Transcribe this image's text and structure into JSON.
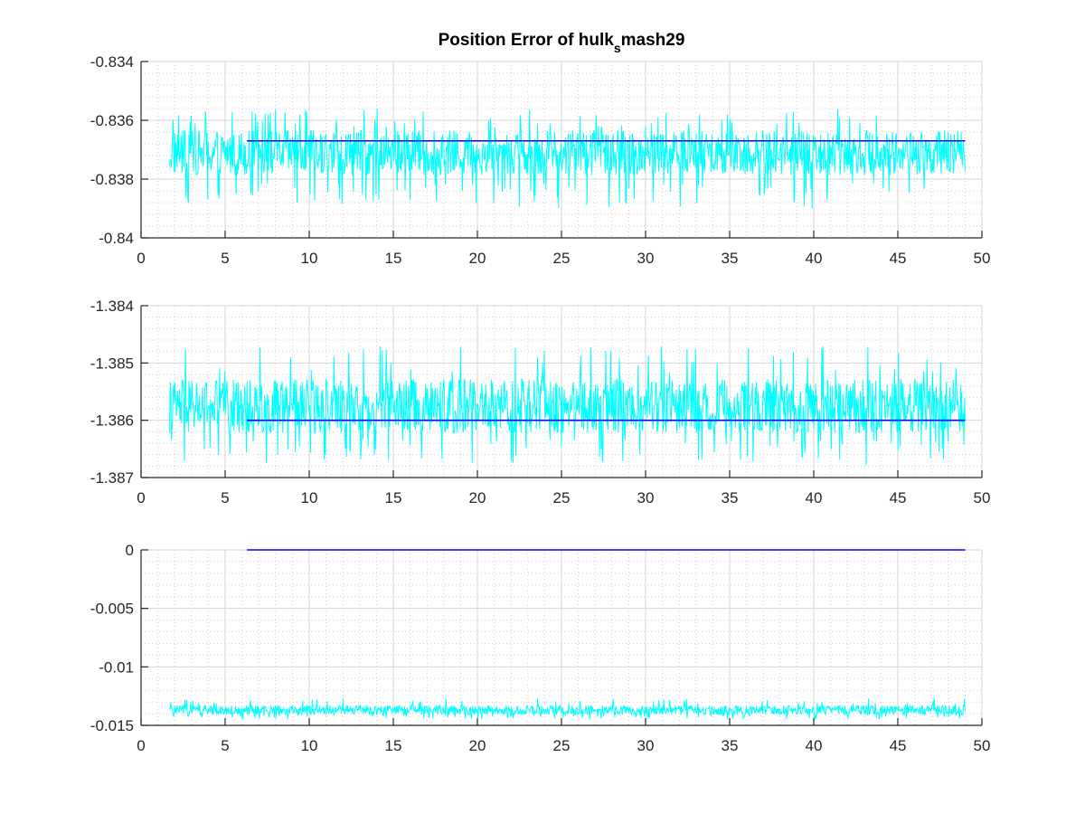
{
  "figure": {
    "title_main": "Position Error of hulk",
    "title_sub": "s",
    "title_tail": "mash29"
  },
  "colors": {
    "measured": "#00ffff",
    "reference": "#0000ff",
    "axis": "#262626",
    "grid": "#d4d4d4"
  },
  "chart_data": [
    {
      "type": "line",
      "xlim": [
        0,
        50
      ],
      "ylim": [
        -0.84,
        -0.834
      ],
      "xticks": [
        0,
        5,
        10,
        15,
        20,
        25,
        30,
        35,
        40,
        45,
        50
      ],
      "xtick_labels": [
        "0",
        "5",
        "10",
        "15",
        "20",
        "25",
        "30",
        "35",
        "40",
        "45",
        "50"
      ],
      "yticks": [
        -0.834,
        -0.836,
        -0.838,
        -0.84
      ],
      "ytick_labels": [
        "-0.834",
        "-0.836",
        "-0.838",
        "-0.84"
      ],
      "grid": "on (major and minor)",
      "series": [
        {
          "color": "cyan",
          "x_range": [
            1.7,
            49
          ],
          "mean": -0.8371,
          "noise_min": -0.839,
          "noise_max": -0.8356
        },
        {
          "color": "blue",
          "x": [
            6.3,
            49
          ],
          "y": [
            -0.8367,
            -0.8367
          ]
        }
      ]
    },
    {
      "type": "line",
      "xlim": [
        0,
        50
      ],
      "ylim": [
        -1.387,
        -1.384
      ],
      "xticks": [
        0,
        5,
        10,
        15,
        20,
        25,
        30,
        35,
        40,
        45,
        50
      ],
      "xtick_labels": [
        "0",
        "5",
        "10",
        "15",
        "20",
        "25",
        "30",
        "35",
        "40",
        "45",
        "50"
      ],
      "yticks": [
        -1.384,
        -1.385,
        -1.386,
        -1.387
      ],
      "ytick_labels": [
        "-1.384",
        "-1.385",
        "-1.386",
        "-1.387"
      ],
      "grid": "on (major and minor)",
      "series": [
        {
          "color": "cyan",
          "x_range": [
            1.7,
            49
          ],
          "mean": -1.38575,
          "noise_min": -1.3868,
          "noise_max": -1.3847
        },
        {
          "color": "blue",
          "x": [
            6.3,
            49
          ],
          "y": [
            -1.386,
            -1.386
          ]
        }
      ]
    },
    {
      "type": "line",
      "xlim": [
        0,
        50
      ],
      "ylim": [
        -0.015,
        0
      ],
      "xticks": [
        0,
        5,
        10,
        15,
        20,
        25,
        30,
        35,
        40,
        45,
        50
      ],
      "xtick_labels": [
        "0",
        "5",
        "10",
        "15",
        "20",
        "25",
        "30",
        "35",
        "40",
        "45",
        "50"
      ],
      "yticks": [
        0,
        -0.005,
        -0.01,
        -0.015
      ],
      "ytick_labels": [
        "0",
        "-0.005",
        "-0.01",
        "-0.015"
      ],
      "grid": "on (major and minor)",
      "series": [
        {
          "color": "cyan",
          "x_range": [
            1.7,
            49
          ],
          "mean": -0.0137,
          "noise_min": -0.0145,
          "noise_max": -0.0127
        },
        {
          "color": "blue",
          "x": [
            6.3,
            49
          ],
          "y": [
            0,
            0
          ]
        }
      ]
    }
  ]
}
